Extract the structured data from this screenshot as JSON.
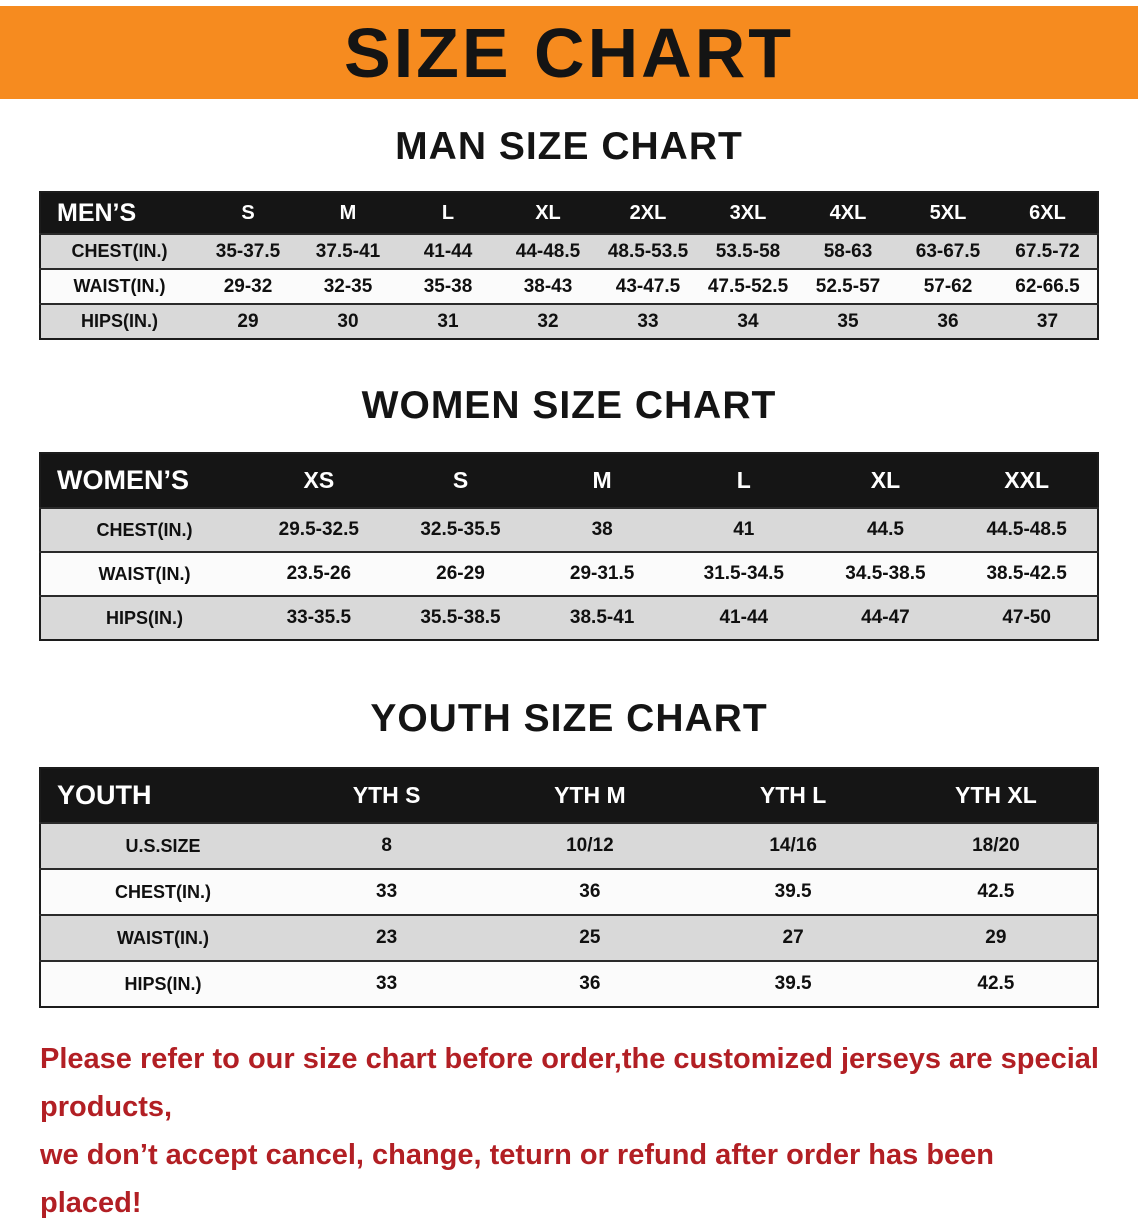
{
  "banner": {
    "title": "SIZE CHART"
  },
  "colors": {
    "banner_bg": "#f68b1f",
    "table_header_bg": "#151515",
    "stripe_gray": "#d9d9d9",
    "notice_red": "#b21f24"
  },
  "sections": [
    {
      "heading": "MAN SIZE CHART",
      "table": {
        "corner": "MEN’S",
        "columns": [
          "S",
          "M",
          "L",
          "XL",
          "2XL",
          "3XL",
          "4XL",
          "5XL",
          "6XL"
        ],
        "rows": [
          {
            "label": "CHEST(IN.)",
            "values": [
              "35-37.5",
              "37.5-41",
              "41-44",
              "44-48.5",
              "48.5-53.5",
              "53.5-58",
              "58-63",
              "63-67.5",
              "67.5-72"
            ]
          },
          {
            "label": "WAIST(IN.)",
            "values": [
              "29-32",
              "32-35",
              "35-38",
              "38-43",
              "43-47.5",
              "47.5-52.5",
              "52.5-57",
              "57-62",
              "62-66.5"
            ]
          },
          {
            "label": "HIPS(IN.)",
            "values": [
              "29",
              "30",
              "31",
              "32",
              "33",
              "34",
              "35",
              "36",
              "37"
            ]
          }
        ]
      }
    },
    {
      "heading": "WOMEN SIZE CHART",
      "table": {
        "corner": "WOMEN’S",
        "columns": [
          "XS",
          "S",
          "M",
          "L",
          "XL",
          "XXL"
        ],
        "rows": [
          {
            "label": "CHEST(IN.)",
            "values": [
              "29.5-32.5",
              "32.5-35.5",
              "38",
              "41",
              "44.5",
              "44.5-48.5"
            ]
          },
          {
            "label": "WAIST(IN.)",
            "values": [
              "23.5-26",
              "26-29",
              "29-31.5",
              "31.5-34.5",
              "34.5-38.5",
              "38.5-42.5"
            ]
          },
          {
            "label": "HIPS(IN.)",
            "values": [
              "33-35.5",
              "35.5-38.5",
              "38.5-41",
              "41-44",
              "44-47",
              "47-50"
            ]
          }
        ]
      }
    },
    {
      "heading": "YOUTH SIZE CHART",
      "table": {
        "corner": "YOUTH",
        "columns": [
          "YTH S",
          "YTH M",
          "YTH L",
          "YTH XL"
        ],
        "rows": [
          {
            "label": "U.S.SIZE",
            "values": [
              "8",
              "10/12",
              "14/16",
              "18/20"
            ]
          },
          {
            "label": "CHEST(IN.)",
            "values": [
              "33",
              "36",
              "39.5",
              "42.5"
            ]
          },
          {
            "label": "WAIST(IN.)",
            "values": [
              "23",
              "25",
              "27",
              "29"
            ]
          },
          {
            "label": "HIPS(IN.)",
            "values": [
              "33",
              "36",
              "39.5",
              "42.5"
            ]
          }
        ]
      }
    }
  ],
  "footer": {
    "line1": "Please refer to our size chart before order,the customized jerseys are special products,",
    "line2": "we don’t accept cancel, change, teturn or refund after order has been placed!"
  }
}
